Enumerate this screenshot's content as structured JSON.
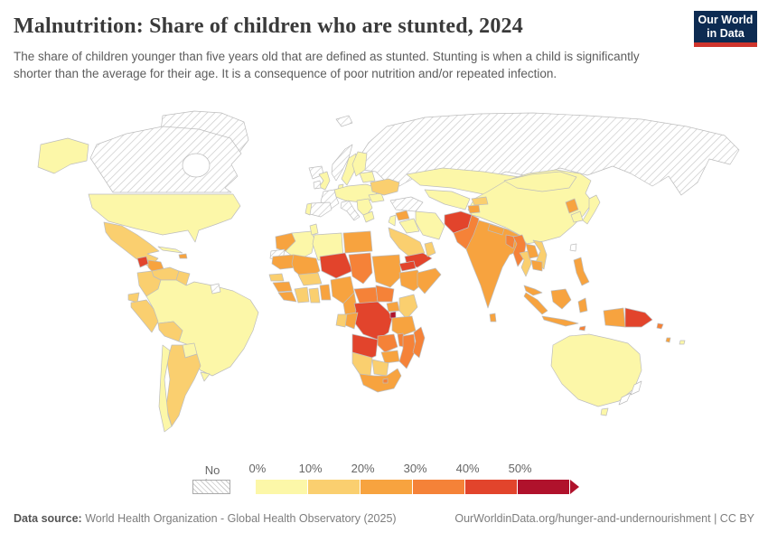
{
  "header": {
    "title": "Malnutrition: Share of children who are stunted, 2024",
    "subtitle": "The share of children younger than five years old that are defined as stunted. Stunting is when a child is significantly shorter than the average for their age. It is a consequence of poor nutrition and/or repeated infection.",
    "logo": {
      "line1": "Our World",
      "line2": "in Data"
    }
  },
  "legend": {
    "no_data_label": "No data",
    "ticks": [
      "0%",
      "10%",
      "20%",
      "30%",
      "40%",
      "50%"
    ]
  },
  "footer": {
    "datasource_label": "Data source:",
    "datasource_text": " World Health Organization - Global Health Observatory (2025)",
    "link_text": "OurWorldinData.org/hunger-and-undernourishment | CC BY"
  },
  "colors": {
    "bins": [
      "#fcf7a8",
      "#facf6f",
      "#f7a33f",
      "#f58238",
      "#e2442c",
      "#b0122c"
    ],
    "navy": "#0d2b52",
    "logo_red": "#cf342c",
    "border": "#bdbdbd"
  },
  "chart_data": {
    "type": "choropleth_map",
    "title": "Malnutrition: Share of children who are stunted, 2024",
    "legend_bins": [
      {
        "range": "0-10%",
        "color": "#fcf7a8"
      },
      {
        "range": "10-20%",
        "color": "#facf6f"
      },
      {
        "range": "20-30%",
        "color": "#f7a33f"
      },
      {
        "range": "30-40%",
        "color": "#f58238"
      },
      {
        "range": "40-50%",
        "color": "#e2442c"
      },
      {
        "range": "50%+",
        "color": "#b0122c"
      }
    ],
    "no_data_style": "white with gray diagonal hatching",
    "country_bins": {
      "greenland": "nodata",
      "canada": "nodata",
      "russia": "nodata",
      "svalbard": "nodata",
      "iceland": "nodata",
      "ireland": "nodata",
      "norway": "nodata",
      "france": "nodata",
      "spain": "nodata",
      "italy": "nodata",
      "turkey": "nodata",
      "wsahara": "nodata",
      "frenchguiana": "nodata",
      "newzealand": "outline",
      "taiwan": "outline",
      "newcaledonia": "outline",
      "alaska": 1,
      "usa": 1,
      "cuba": 1,
      "brazil": 1,
      "chile": 1,
      "paraguay": 1,
      "uruguay": 1,
      "uk": 1,
      "portugal": 1,
      "sweden": 1,
      "finland": 1,
      "denmark": 1,
      "ceurope": 1,
      "balkans": 1,
      "greece": 1,
      "romania": 1,
      "baltics": 1,
      "kazakhstan": 1,
      "centralasia": 1,
      "iran": 1,
      "iraq": 1,
      "jordan": 1,
      "china": 1,
      "mongolia": 1,
      "japan": 1,
      "skorea": 1,
      "australia": 1,
      "tasmania": 1,
      "algeria": 1,
      "tunisia": 1,
      "libya": 1,
      "fiji": 1,
      "mexico": 2,
      "costapanama": 2,
      "colombia": 2,
      "venezuela": 2,
      "guyana": 2,
      "ecuador": 2,
      "peru": 2,
      "bolivia": 2,
      "argentina": 2,
      "ukraine": 2,
      "saudi": 2,
      "oman": 2,
      "kyrgyzstan": 2,
      "thailand": 2,
      "vietnam": 2,
      "senegal": 2,
      "ivorycoast": 2,
      "ghana": 2,
      "burkina": 2,
      "gabon": 2,
      "kenya": 2,
      "namibia": 2,
      "botswana": 2,
      "honduras": 3,
      "haiti": 3,
      "morocco": 3,
      "egypt": 3,
      "mauritania": 3,
      "mali": 3,
      "sudan": 3,
      "somalia": 3,
      "guinea": 3,
      "sierraliberia": 3,
      "togobenin": 3,
      "nigeria": 3,
      "cameroon": 3,
      "uganda": 3,
      "tanzania": 3,
      "congo": 3,
      "zimbabwe": 3,
      "southafrica": 3,
      "ethiopia": 3,
      "syria": 3,
      "tajikistan": 3,
      "india": 3,
      "nepal": 3,
      "srilanka": 3,
      "laos": 3,
      "cambodia": 3,
      "nkorea": 3,
      "malaysia": 3,
      "sumatra": 3,
      "borneo": 3,
      "java": 3,
      "sulawesi": 3,
      "philippines": 3,
      "wpapua": 3,
      "vanuatu": 3,
      "pakistan": 4,
      "bangladesh": 4,
      "myanmar": 4,
      "chad": 4,
      "car": 4,
      "ssudan": 4,
      "zambia": 4,
      "malawi": 4,
      "mozambique": 4,
      "lesotho": 4,
      "madagascar": 4,
      "timor": 4,
      "solomon": 4,
      "guatemala": 5,
      "niger": 5,
      "eritrea": 5,
      "yemen": 5,
      "afghanistan": 5,
      "drc": 5,
      "angola": 5,
      "png": 5,
      "burundi": 6
    }
  }
}
